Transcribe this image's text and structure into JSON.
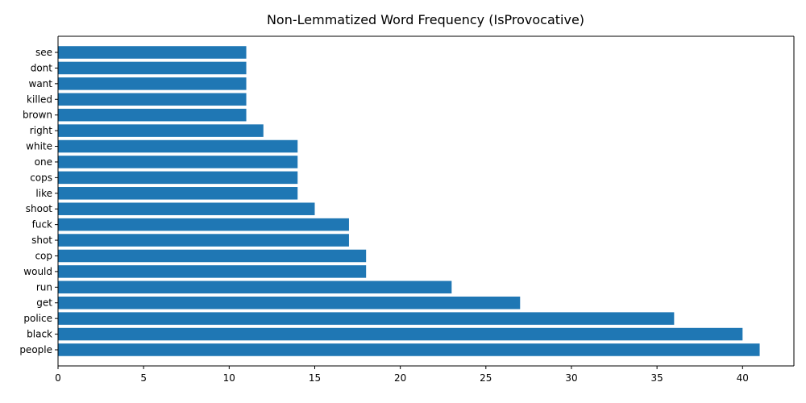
{
  "chart_data": {
    "type": "bar",
    "orientation": "horizontal",
    "title": "Non-Lemmatized Word Frequency (IsProvocative)",
    "xlabel": "",
    "ylabel": "",
    "categories": [
      "people",
      "black",
      "police",
      "get",
      "run",
      "would",
      "cop",
      "shot",
      "fuck",
      "shoot",
      "like",
      "cops",
      "one",
      "white",
      "right",
      "brown",
      "killed",
      "want",
      "dont",
      "see"
    ],
    "values": [
      41,
      40,
      36,
      27,
      23,
      18,
      18,
      17,
      17,
      15,
      14,
      14,
      14,
      14,
      12,
      11,
      11,
      11,
      11,
      11
    ],
    "xlim": [
      0,
      43
    ],
    "xticks": [
      0,
      5,
      10,
      15,
      20,
      25,
      30,
      35,
      40
    ],
    "grid": false,
    "legend": "none",
    "bar_color": "#1f77b4"
  }
}
